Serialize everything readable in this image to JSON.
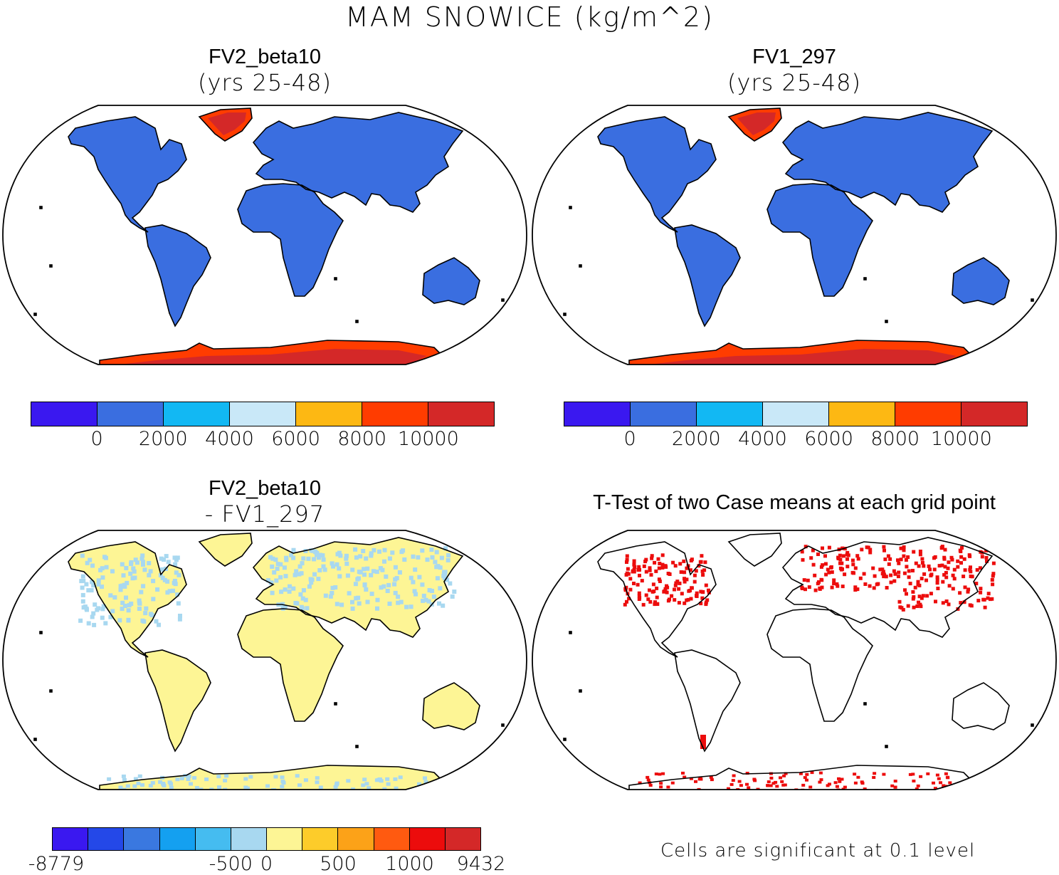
{
  "title": "MAM SNOWICE (kg/m^2)",
  "panels": {
    "top_left": {
      "title": "FV2_beta10",
      "subtitle": "(yrs 25-48)"
    },
    "top_right": {
      "title": "FV1_297",
      "subtitle": "(yrs 25-48)"
    },
    "bottom_left": {
      "title": "FV2_beta10",
      "subtitle": "- FV1_297"
    },
    "bottom_right": {
      "title": "T-Test of two Case means at each grid point",
      "note": "Cells are significant at 0.1 level"
    }
  },
  "colorbars": {
    "absolute": {
      "colors": [
        "#3a18f0",
        "#3a6ee0",
        "#12b8f3",
        "#c9e8f8",
        "#fdb813",
        "#ff3c00",
        "#d42828"
      ],
      "labels": [
        "0",
        "2000",
        "4000",
        "6000",
        "8000",
        "10000"
      ]
    },
    "difference": {
      "colors": [
        "#3a18f0",
        "#2448e8",
        "#3a78e0",
        "#14a0f0",
        "#45bcf0",
        "#a8d8f0",
        "#fdf595",
        "#fdcc2a",
        "#fca218",
        "#ff5a10",
        "#ec0c0c",
        "#d42828"
      ],
      "labels": [
        "-8779",
        "-500",
        "0",
        "500",
        "1000",
        "9432"
      ]
    }
  },
  "map_colors": {
    "land_snow": "#3a6ee0",
    "ice_sheet": "#d42828",
    "ice_edge": "#ff3c00",
    "diff_land": "#fdf595",
    "diff_snow": "#a8d8f0",
    "significant": "#ec0c0c"
  }
}
